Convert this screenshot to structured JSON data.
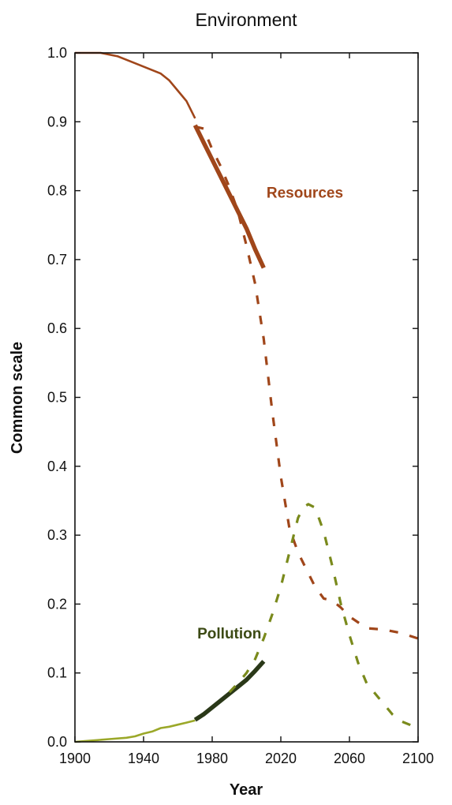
{
  "chart_data": {
    "type": "line",
    "title": "Environment",
    "xlabel": "Year",
    "ylabel": "Common scale",
    "xlim": [
      1900,
      2100
    ],
    "ylim": [
      0,
      1.0
    ],
    "x_ticks": [
      "1900",
      "1940",
      "1980",
      "2020",
      "2060",
      "2100"
    ],
    "y_ticks": [
      "0.0",
      "0.1",
      "0.2",
      "0.3",
      "0.4",
      "0.5",
      "0.6",
      "0.7",
      "0.8",
      "0.9",
      "1.0"
    ],
    "grid": false,
    "series": [
      {
        "name": "Resources",
        "role": "historical",
        "color": "#a0461a",
        "style": "solid-thin",
        "points": [
          [
            1900,
            1.0
          ],
          [
            1915,
            1.0
          ],
          [
            1925,
            0.995
          ],
          [
            1935,
            0.985
          ],
          [
            1945,
            0.975
          ],
          [
            1950,
            0.97
          ],
          [
            1955,
            0.96
          ],
          [
            1960,
            0.945
          ],
          [
            1965,
            0.93
          ],
          [
            1970,
            0.905
          ]
        ]
      },
      {
        "name": "Resources",
        "role": "observed",
        "color": "#a0461a",
        "style": "solid-thick",
        "points": [
          [
            1970,
            0.895
          ],
          [
            1975,
            0.87
          ],
          [
            1980,
            0.845
          ],
          [
            1985,
            0.82
          ],
          [
            1990,
            0.795
          ],
          [
            1995,
            0.77
          ],
          [
            2000,
            0.745
          ],
          [
            2005,
            0.715
          ],
          [
            2010,
            0.688
          ]
        ]
      },
      {
        "name": "Resources",
        "role": "projection",
        "color": "#a0461a",
        "style": "dashed",
        "points": [
          [
            1970,
            0.893
          ],
          [
            1975,
            0.89
          ],
          [
            1980,
            0.86
          ],
          [
            1985,
            0.835
          ],
          [
            1990,
            0.805
          ],
          [
            1995,
            0.77
          ],
          [
            2000,
            0.72
          ],
          [
            2005,
            0.665
          ],
          [
            2010,
            0.585
          ],
          [
            2015,
            0.48
          ],
          [
            2020,
            0.385
          ],
          [
            2025,
            0.31
          ],
          [
            2030,
            0.275
          ],
          [
            2035,
            0.25
          ],
          [
            2040,
            0.225
          ],
          [
            2045,
            0.208
          ],
          [
            2050,
            0.205
          ],
          [
            2055,
            0.195
          ],
          [
            2060,
            0.182
          ],
          [
            2070,
            0.165
          ],
          [
            2080,
            0.163
          ],
          [
            2090,
            0.158
          ],
          [
            2100,
            0.15
          ]
        ]
      },
      {
        "name": "Pollution",
        "role": "historical",
        "color": "#9ba829",
        "style": "solid-thin",
        "points": [
          [
            1900,
            0.0
          ],
          [
            1910,
            0.002
          ],
          [
            1920,
            0.004
          ],
          [
            1930,
            0.006
          ],
          [
            1935,
            0.008
          ],
          [
            1940,
            0.012
          ],
          [
            1945,
            0.015
          ],
          [
            1950,
            0.02
          ],
          [
            1955,
            0.022
          ],
          [
            1960,
            0.025
          ],
          [
            1965,
            0.028
          ],
          [
            1970,
            0.031
          ]
        ]
      },
      {
        "name": "Pollution",
        "role": "observed",
        "color": "#2a3818",
        "style": "solid-thick",
        "points": [
          [
            1970,
            0.032
          ],
          [
            1975,
            0.04
          ],
          [
            1980,
            0.05
          ],
          [
            1985,
            0.06
          ],
          [
            1990,
            0.07
          ],
          [
            1995,
            0.08
          ],
          [
            2000,
            0.09
          ],
          [
            2005,
            0.103
          ],
          [
            2010,
            0.117
          ]
        ]
      },
      {
        "name": "Pollution",
        "role": "projection",
        "color": "#7a8a1c",
        "style": "dashed",
        "points": [
          [
            1990,
            0.072
          ],
          [
            1995,
            0.085
          ],
          [
            2000,
            0.1
          ],
          [
            2005,
            0.12
          ],
          [
            2010,
            0.15
          ],
          [
            2015,
            0.185
          ],
          [
            2020,
            0.225
          ],
          [
            2025,
            0.275
          ],
          [
            2030,
            0.325
          ],
          [
            2033,
            0.34
          ],
          [
            2036,
            0.345
          ],
          [
            2040,
            0.34
          ],
          [
            2045,
            0.305
          ],
          [
            2050,
            0.255
          ],
          [
            2055,
            0.2
          ],
          [
            2060,
            0.155
          ],
          [
            2065,
            0.115
          ],
          [
            2070,
            0.085
          ],
          [
            2075,
            0.07
          ],
          [
            2080,
            0.055
          ],
          [
            2085,
            0.04
          ],
          [
            2090,
            0.03
          ],
          [
            2095,
            0.025
          ],
          [
            2100,
            0.018
          ]
        ]
      }
    ],
    "annotations": [
      {
        "text": "Resources",
        "x": 2034,
        "y": 0.79,
        "color": "#a0461a"
      },
      {
        "text": "Pollution",
        "x": 1990,
        "y": 0.15,
        "color": "#3c4a14"
      }
    ]
  }
}
